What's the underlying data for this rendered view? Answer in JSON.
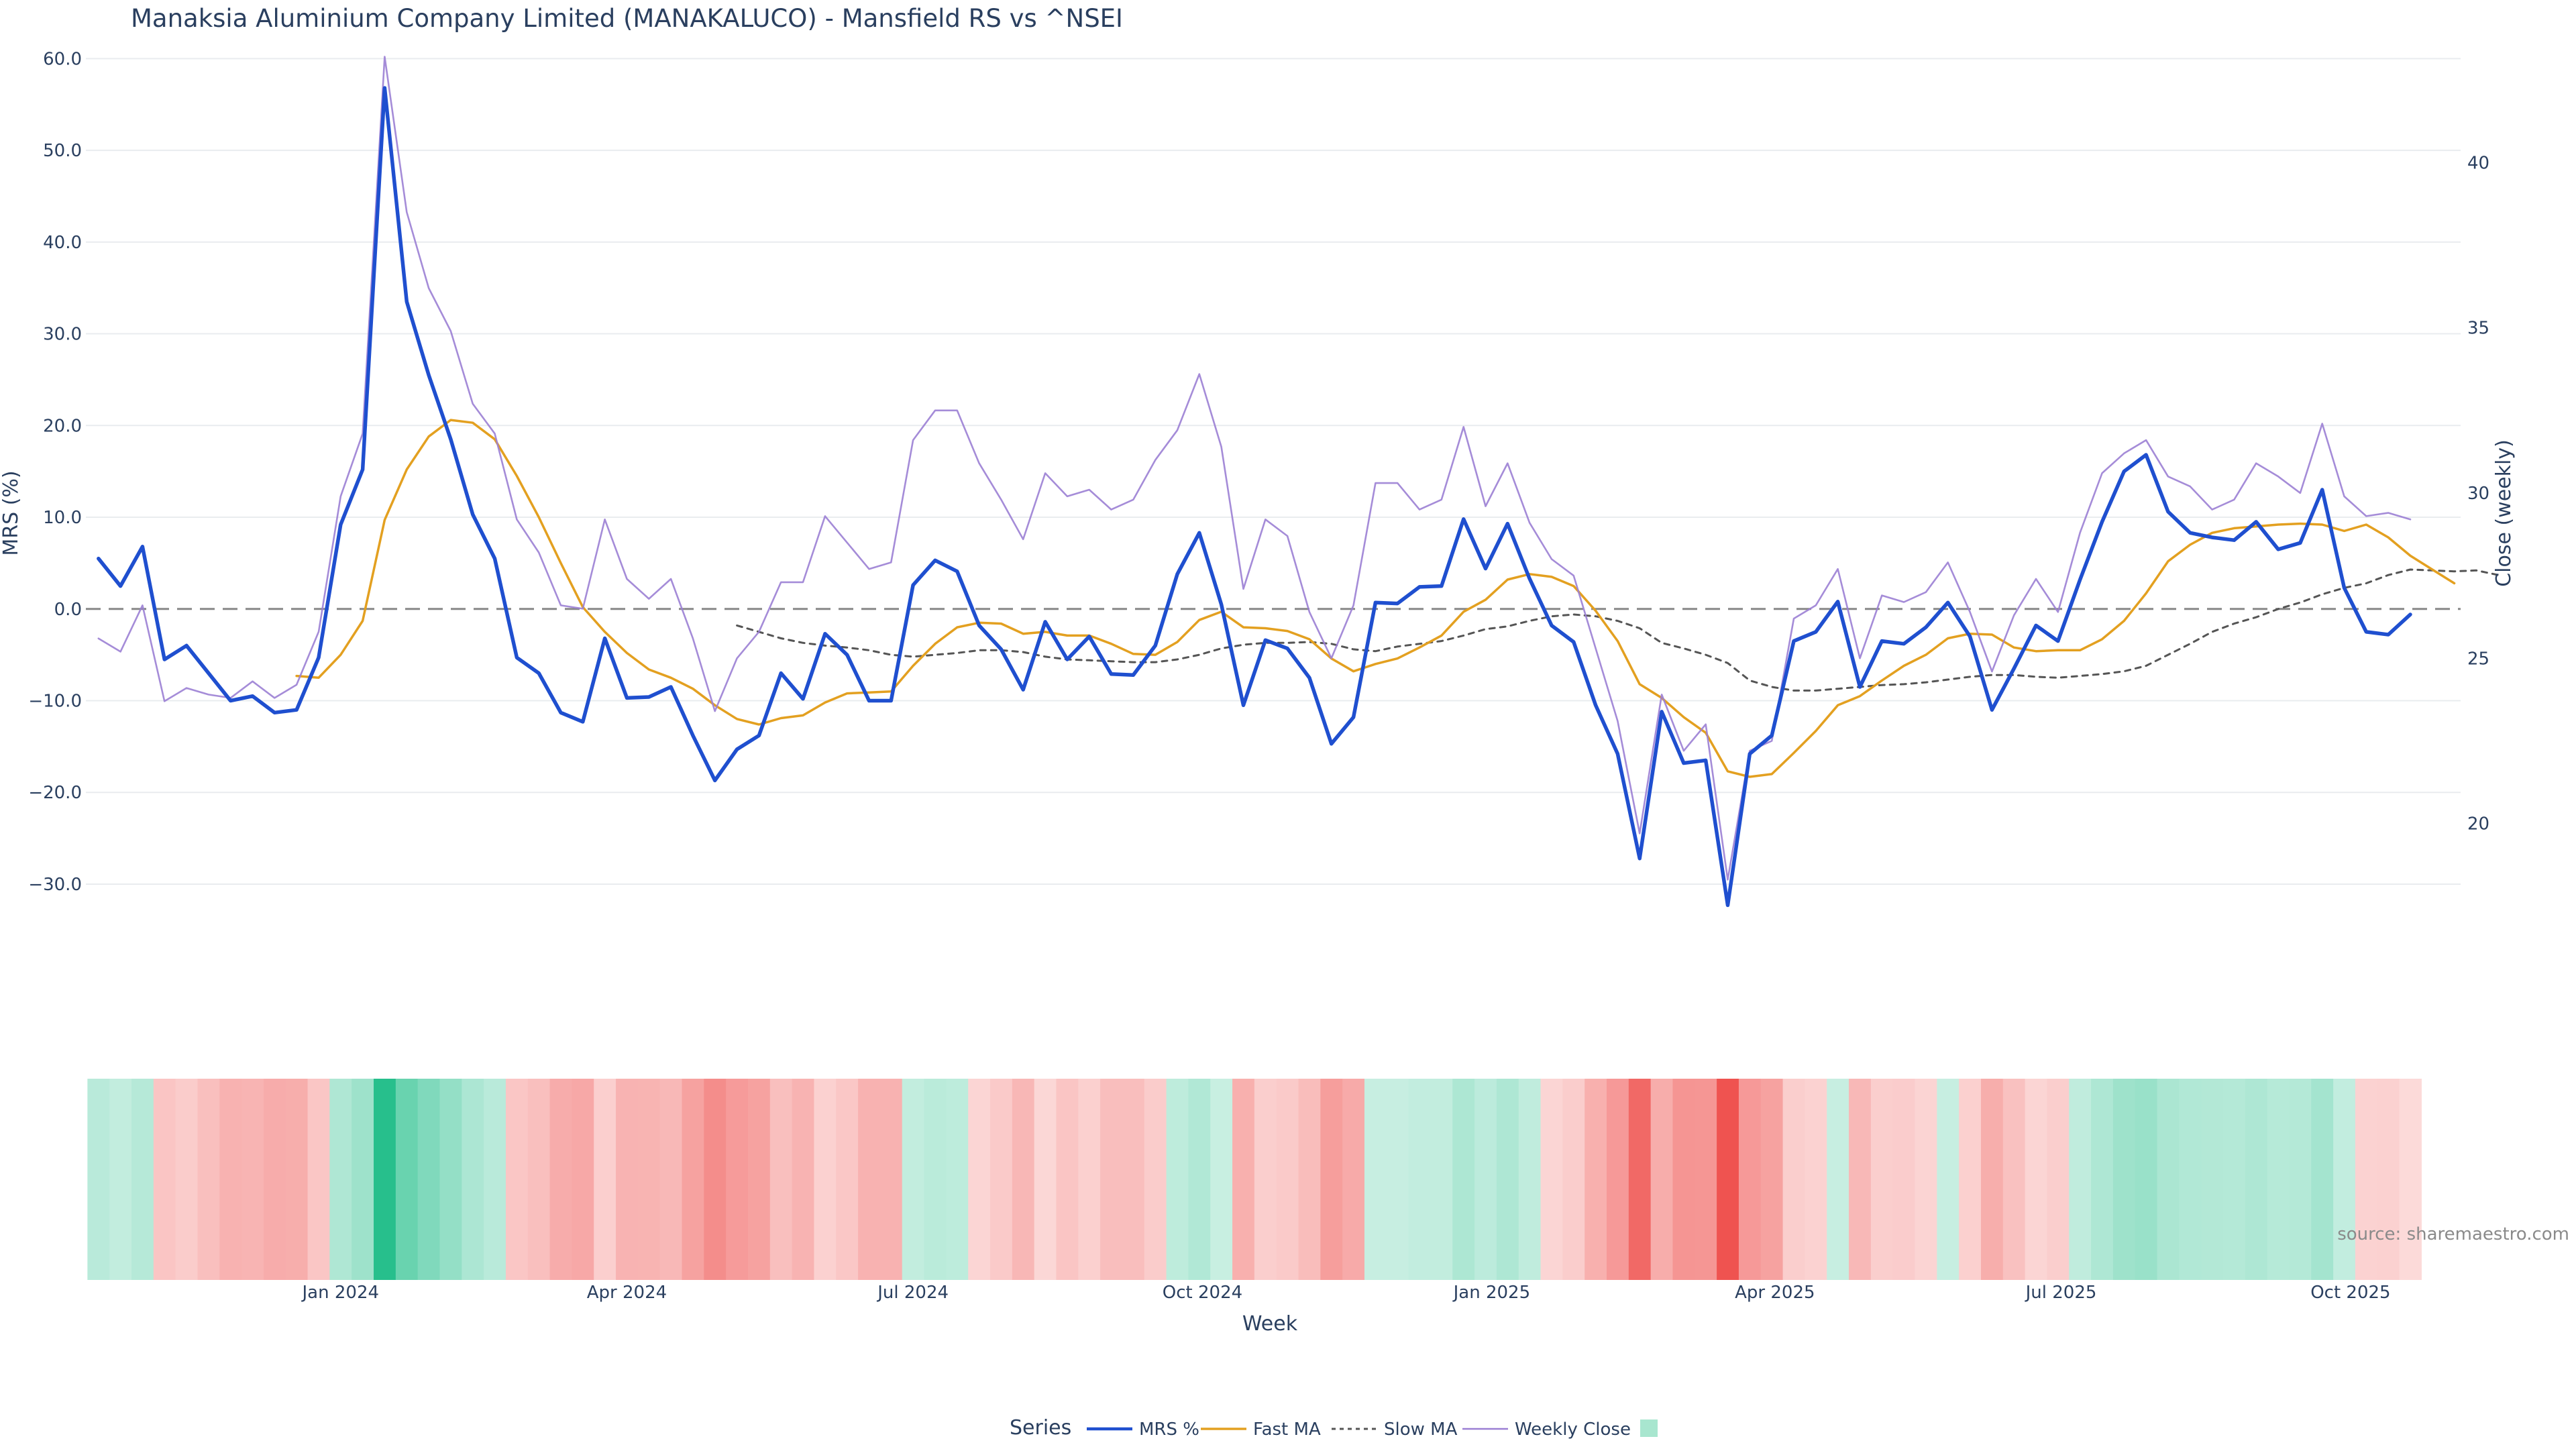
{
  "title": "Manaksia Aluminium Company Limited (MANAKALUCO) - Mansfield RS vs ^NSEI",
  "source_label": "source: sharemaestro.com",
  "colors": {
    "mrs": "#1f4fcf",
    "fast_ma": "#e3a020",
    "slow_ma": "#555555",
    "close": "#9b7fd4",
    "zero_line": "#888888",
    "grid": "#e9ecef",
    "heat_pos": "#27bf8c",
    "heat_neg": "#ef5350"
  },
  "chart_data": {
    "type": "line",
    "title": "Manaksia Aluminium Company Limited (MANAKALUCO) - Mansfield RS vs ^NSEI",
    "xlabel": "Week",
    "ylabel": "MRS (%)",
    "y2label": "Close (weekly)",
    "ylim": [
      -36,
      62
    ],
    "y2lim": [
      16.5,
      43.7
    ],
    "yticks": [
      "60.0",
      "50.0",
      "40.0",
      "30.0",
      "20.0",
      "10.0",
      "0.0",
      "−10.0",
      "−20.0",
      "−30.0"
    ],
    "y2ticks": [
      "40",
      "35",
      "30",
      "25",
      "20"
    ],
    "xtick_labels": [
      "Jan 2024",
      "Apr 2024",
      "Jul 2024",
      "Oct 2024",
      "Jan 2025",
      "Apr 2025",
      "Jul 2025",
      "Oct 2025"
    ],
    "x_start": "2023-10-16",
    "x_step_days": 7,
    "x_range": [
      "2023-10-12",
      "2025-11-05"
    ],
    "grid": true,
    "legend_position": "bottom-center",
    "legend_title": "Series",
    "zero_line": true,
    "series": [
      {
        "name": "MRS %",
        "axis": "y",
        "style": "solid-thick",
        "values": [
          5.5,
          2.5,
          6.8,
          -5.5,
          -4,
          -7,
          -10,
          -9.5,
          -11.3,
          -11,
          -5.3,
          9.2,
          15.2,
          56.8,
          33.5,
          25.5,
          18.5,
          10.3,
          5.5,
          -5.3,
          -7,
          -11.3,
          -12.3,
          -3.2,
          -9.7,
          -9.6,
          -8.5,
          -13.8,
          -18.7,
          -15.3,
          -13.8,
          -7,
          -9.8,
          -2.7,
          -5,
          -10,
          -10,
          2.6,
          5.3,
          4.1,
          -1.8,
          -4.4,
          -8.8,
          -1.4,
          -5.5,
          -3,
          -7.1,
          -7.2,
          -4,
          3.8,
          8.3,
          0.5,
          -10.5,
          -3.4,
          -4.3,
          -7.5,
          -14.7,
          -11.8,
          0.7,
          0.6,
          2.4,
          2.5,
          9.8,
          4.4,
          9.3,
          3.3,
          -1.8,
          -3.6,
          -10.5,
          -15.8,
          -27.2,
          -11.2,
          -16.8,
          -16.5,
          -32.3,
          -15.8,
          -13.8,
          -3.5,
          -2.5,
          0.8,
          -8.5,
          -3.5,
          -3.8,
          -2,
          0.7,
          -3,
          -11,
          -6.5,
          -1.8,
          -3.5,
          3.2,
          9.5,
          15,
          16.8,
          10.6,
          8.3,
          7.8,
          7.5,
          9.5,
          6.5,
          7.2,
          13,
          2.3,
          -2.5,
          -2.8,
          -0.6
        ]
      },
      {
        "name": "Fast MA",
        "axis": "y",
        "style": "solid",
        "start_index": 9,
        "values": [
          -7.3,
          -7.5,
          -5,
          -1.3,
          9.7,
          15.2,
          18.8,
          20.6,
          20.3,
          18.5,
          14.5,
          10,
          5,
          0.2,
          -2.5,
          -4.8,
          -6.6,
          -7.5,
          -8.7,
          -10.5,
          -12,
          -12.6,
          -11.9,
          -11.6,
          -10.2,
          -9.2,
          -9.1,
          -9,
          -6.2,
          -3.8,
          -2,
          -1.5,
          -1.6,
          -2.7,
          -2.5,
          -2.9,
          -2.9,
          -3.8,
          -4.9,
          -5,
          -3.6,
          -1.2,
          -0.3,
          -2,
          -2.1,
          -2.4,
          -3.3,
          -5.4,
          -6.8,
          -6,
          -5.4,
          -4.2,
          -2.9,
          -0.3,
          1,
          3.2,
          3.8,
          3.5,
          2.5,
          -0.2,
          -3.5,
          -8.2,
          -9.7,
          -11.8,
          -13.5,
          -17.7,
          -18.3,
          -18,
          -15.7,
          -13.3,
          -10.5,
          -9.5,
          -7.8,
          -6.2,
          -5,
          -3.2,
          -2.7,
          -2.8,
          -4.2,
          -4.6,
          -4.5,
          -4.5,
          -3.3,
          -1.3,
          1.7,
          5.2,
          7,
          8.3,
          8.8,
          9,
          9.2,
          9.3,
          9.2,
          8.5,
          9.2,
          7.8,
          5.8,
          4.3,
          2.8
        ]
      },
      {
        "name": "Slow MA",
        "axis": "y",
        "style": "dashed",
        "start_index": 29,
        "values": [
          -1.8,
          -2.5,
          -3.2,
          -3.7,
          -4,
          -4.2,
          -4.5,
          -5,
          -5.2,
          -5,
          -4.8,
          -4.5,
          -4.5,
          -4.7,
          -5.2,
          -5.5,
          -5.6,
          -5.7,
          -5.8,
          -5.8,
          -5.5,
          -5,
          -4.3,
          -3.9,
          -3.7,
          -3.7,
          -3.6,
          -3.8,
          -4.4,
          -4.6,
          -4.1,
          -3.8,
          -3.5,
          -2.9,
          -2.2,
          -1.9,
          -1.3,
          -0.8,
          -0.6,
          -0.8,
          -1.3,
          -2.1,
          -3.7,
          -4.3,
          -5,
          -5.9,
          -7.8,
          -8.5,
          -8.9,
          -8.9,
          -8.7,
          -8.5,
          -8.3,
          -8.2,
          -8,
          -7.7,
          -7.4,
          -7.2,
          -7.2,
          -7.4,
          -7.5,
          -7.3,
          -7.1,
          -6.8,
          -6.2,
          -5,
          -3.8,
          -2.5,
          -1.6,
          -0.9,
          0,
          0.7,
          1.6,
          2.3,
          2.8,
          3.7,
          4.3,
          4.2,
          4.1,
          4.2,
          3.7
        ]
      },
      {
        "name": "Weekly Close",
        "axis": "y2",
        "style": "solid-thin",
        "values": [
          25.6,
          25.2,
          26.6,
          23.7,
          24.1,
          23.9,
          23.8,
          24.3,
          23.8,
          24.2,
          25.8,
          29.9,
          31.8,
          43.2,
          38.5,
          36.2,
          34.9,
          32.7,
          31.8,
          29.2,
          28.2,
          26.6,
          26.5,
          29.2,
          27.4,
          26.8,
          27.4,
          25.6,
          23.4,
          25,
          25.8,
          27.3,
          27.3,
          29.3,
          28.5,
          27.7,
          27.9,
          31.6,
          32.5,
          32.5,
          30.9,
          29.8,
          28.6,
          30.6,
          29.9,
          30.1,
          29.5,
          29.8,
          31,
          31.9,
          33.6,
          31.4,
          27.1,
          29.2,
          28.7,
          26.4,
          25.0,
          26.6,
          30.3,
          30.3,
          29.5,
          29.8,
          32.0,
          29.6,
          30.9,
          29.1,
          28.0,
          27.5,
          25.3,
          23.1,
          19.7,
          23.9,
          22.2,
          23.0,
          18.3,
          22.2,
          22.5,
          26.2,
          26.6,
          27.7,
          25.0,
          26.9,
          26.7,
          27.0,
          27.9,
          26.4,
          24.6,
          26.3,
          27.4,
          26.4,
          28.8,
          30.6,
          31.2,
          31.6,
          30.5,
          30.2,
          29.5,
          29.8,
          30.9,
          30.5,
          30.0,
          32.1,
          29.9,
          29.3,
          29.4,
          29.2
        ]
      }
    ],
    "heatmap_strip": {
      "colorscale": [
        "#ef5350",
        "#ffffff",
        "#27bf8c"
      ],
      "source_series": "MRS %",
      "range": [
        -32.3,
        56.8
      ]
    }
  },
  "legend": {
    "title": "Series",
    "items": [
      "MRS %",
      "Fast MA",
      "Slow MA",
      "Weekly Close"
    ]
  }
}
